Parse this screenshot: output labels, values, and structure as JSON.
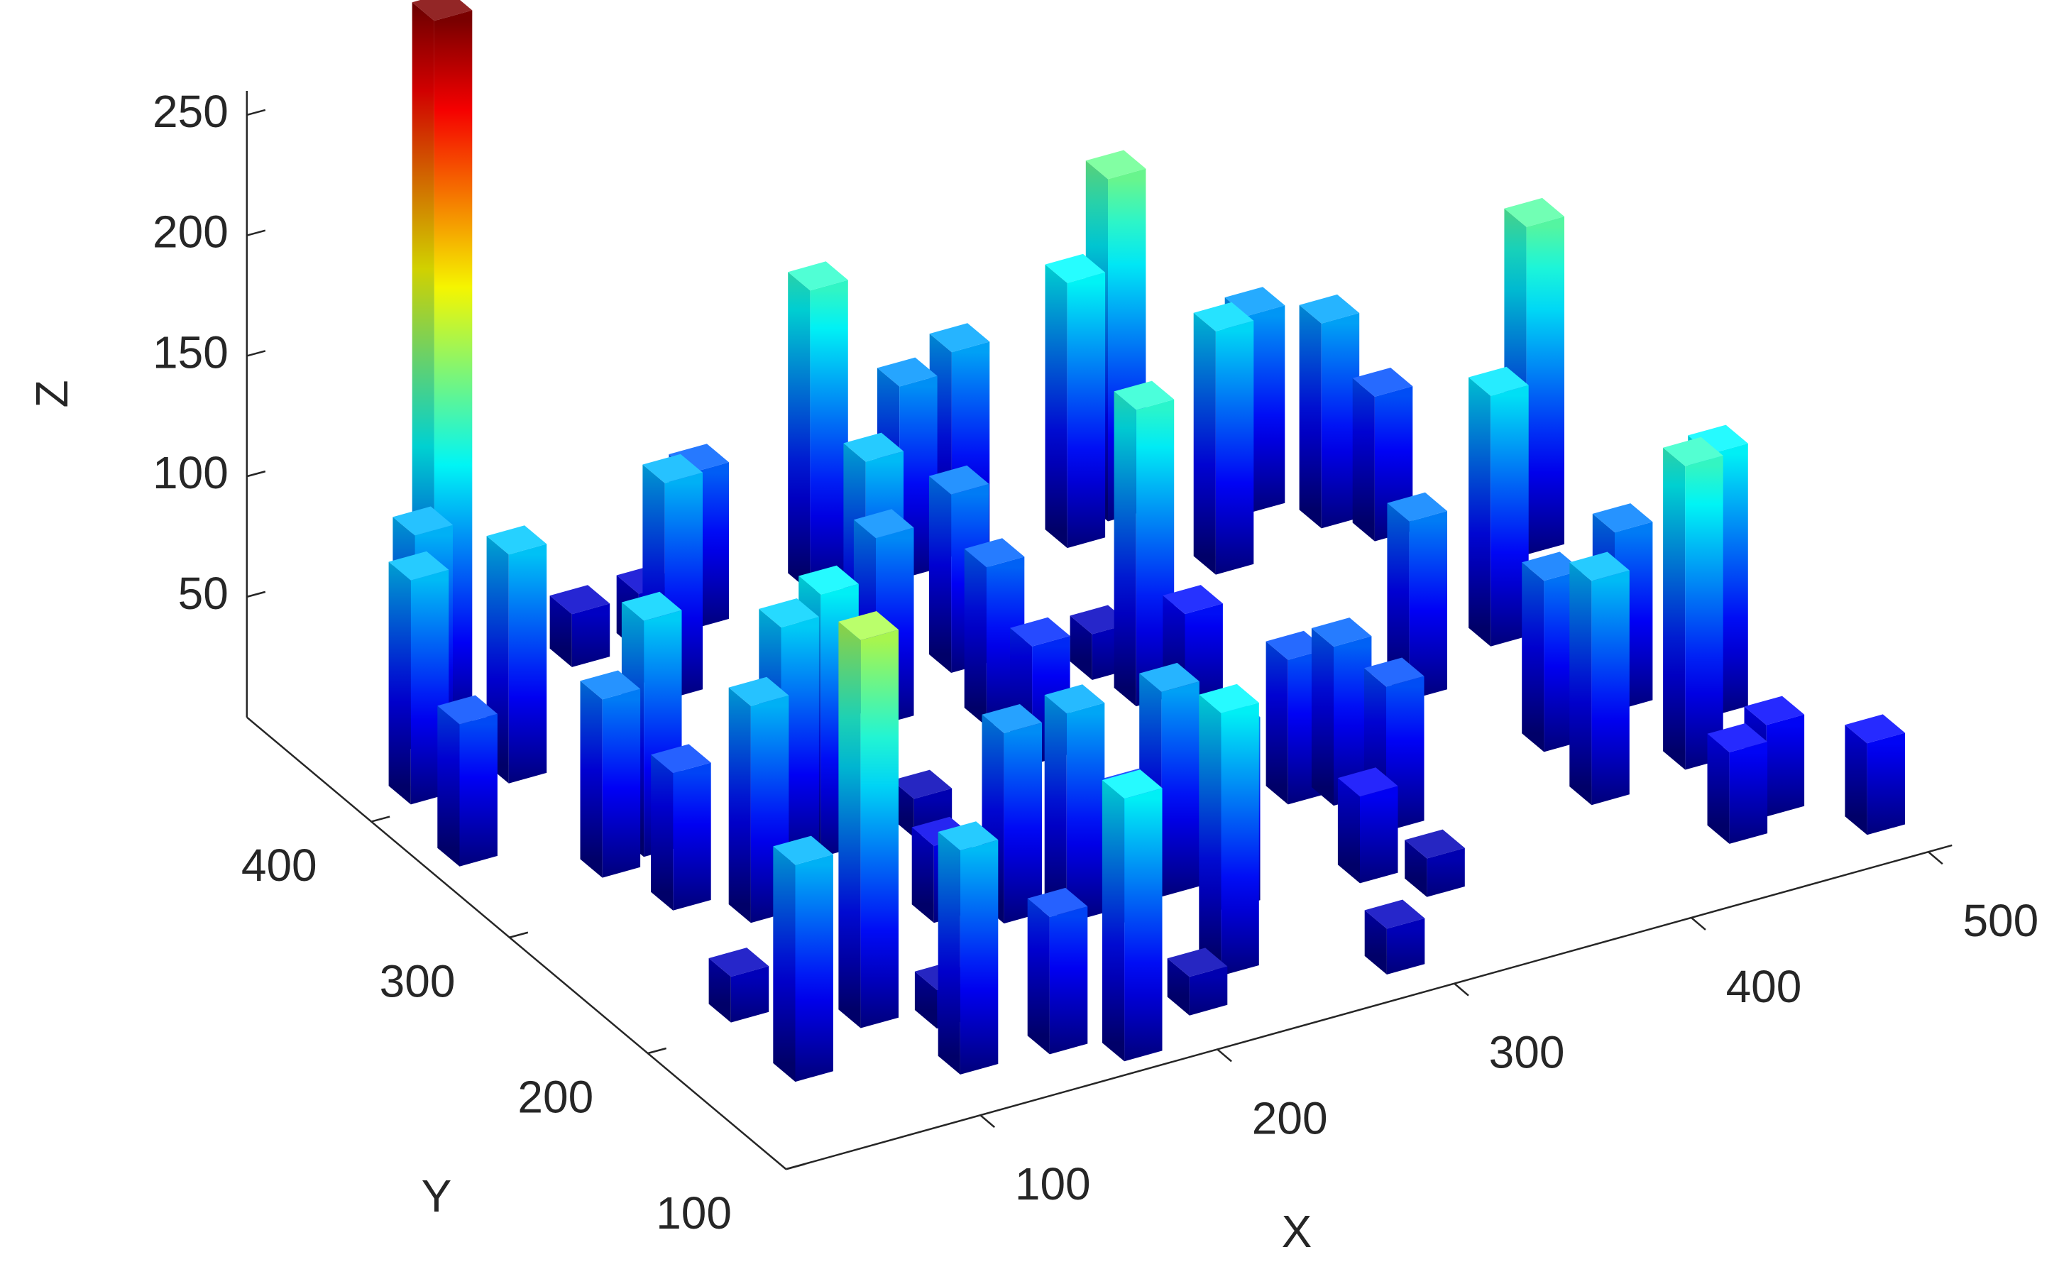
{
  "chart_data": {
    "type": "bar3d",
    "xlabel": "X",
    "ylabel": "Y",
    "zlabel": "Z",
    "xlim": [
      18,
      510
    ],
    "ylim": [
      100,
      490
    ],
    "zlim": [
      0,
      260
    ],
    "xticks": [
      100,
      200,
      300,
      400,
      500
    ],
    "yticks": [
      100,
      200,
      300,
      400
    ],
    "zticks": [
      50,
      100,
      150,
      200,
      250
    ],
    "colormap": "jet",
    "x": [
      45,
      66,
      37,
      80,
      84,
      148,
      175,
      165,
      200,
      78,
      99,
      88,
      108,
      140,
      155,
      62,
      103,
      64,
      252,
      234,
      222,
      192,
      166,
      117,
      127,
      266,
      285,
      257,
      310,
      188,
      257,
      153,
      208,
      373,
      350,
      308,
      226,
      174,
      312,
      248,
      325,
      212,
      237,
      262,
      387,
      420,
      323,
      438,
      337,
      316,
      450,
      344,
      290,
      332,
      401,
      447,
      493,
      424,
      419,
      462,
      462,
      490,
      448,
      470,
      495
    ],
    "y": [
      412,
      445,
      363,
      455,
      408,
      472,
      470,
      434,
      475,
      330,
      336,
      296,
      274,
      307,
      304,
      163,
      186,
      213,
      478,
      407,
      379,
      300,
      241,
      138,
      172,
      400,
      470,
      359,
      475,
      228,
      326,
      135,
      217,
      470,
      460,
      370,
      207,
      117,
      345,
      217,
      332,
      135,
      155,
      197,
      416,
      450,
      254,
      427,
      245,
      190,
      409,
      219,
      126,
      169,
      300,
      320,
      373,
      242,
      199,
      256,
      205,
      235,
      149,
      160,
      130
    ],
    "z": [
      93,
      90,
      59,
      295,
      95,
      22,
      24,
      90,
      65,
      74,
      98,
      57,
      90,
      98,
      109,
      90,
      161,
      19,
      125,
      93,
      78,
      16,
      32,
      93,
      16,
      74,
      80,
      66,
      85,
      79,
      49,
      57,
      87,
      142,
      110,
      19,
      52,
      109,
      123,
      85,
      41,
      16,
      109,
      76,
      101,
      82,
      60,
      85,
      66,
      36,
      60,
      60,
      19,
      16,
      74,
      104,
      136,
      71,
      93,
      74,
      126,
      109,
      38,
      38,
      38
    ]
  }
}
